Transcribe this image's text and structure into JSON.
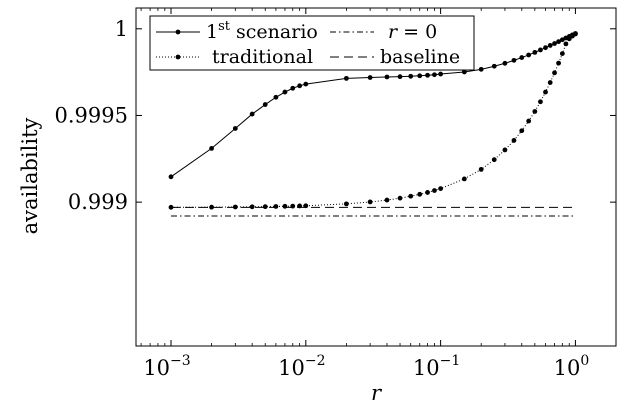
{
  "chart_data": {
    "type": "line",
    "xlabel": "r",
    "ylabel": "availability",
    "xscale": "log",
    "xlim": [
      0.00055,
      2.0
    ],
    "ylim": [
      0.99817,
      1.00012
    ],
    "x_ticks": [
      {
        "value": 0.001,
        "label": "10",
        "exp": "−3"
      },
      {
        "value": 0.01,
        "label": "10",
        "exp": "−2"
      },
      {
        "value": 0.1,
        "label": "10",
        "exp": "−1"
      },
      {
        "value": 1.0,
        "label": "10",
        "exp": "0"
      }
    ],
    "y_ticks": [
      {
        "value": 0.999,
        "label": "0.999"
      },
      {
        "value": 0.9995,
        "label": "0.9995"
      },
      {
        "value": 1.0,
        "label": "1"
      }
    ],
    "legend_position": "top-left",
    "series": [
      {
        "name": "1st scenario",
        "name_main": "1",
        "name_sup": "st",
        "name_rest": " scenario",
        "style": "solid-dots",
        "x": [
          0.001,
          0.002,
          0.003,
          0.004,
          0.005,
          0.006,
          0.007,
          0.008,
          0.009,
          0.01,
          0.02,
          0.03,
          0.04,
          0.05,
          0.06,
          0.07,
          0.08,
          0.09,
          0.1,
          0.15,
          0.2,
          0.25,
          0.3,
          0.35,
          0.4,
          0.45,
          0.5,
          0.55,
          0.6,
          0.65,
          0.7,
          0.75,
          0.8,
          0.85,
          0.9,
          0.95,
          1.0
        ],
        "y": [
          0.999146,
          0.99931,
          0.999425,
          0.999508,
          0.999563,
          0.999605,
          0.999635,
          0.999657,
          0.999671,
          0.999681,
          0.999714,
          0.999719,
          0.999722,
          0.999724,
          0.999726,
          0.999729,
          0.999732,
          0.999735,
          0.999739,
          0.999751,
          0.999766,
          0.999784,
          0.999801,
          0.999818,
          0.999834,
          0.999849,
          0.999864,
          0.999878,
          0.999891,
          0.999904,
          0.999915,
          0.999926,
          0.999937,
          0.999947,
          0.999956,
          0.999965,
          0.999973
        ]
      },
      {
        "name": "traditional",
        "style": "dotted-dots",
        "x": [
          0.001,
          0.002,
          0.003,
          0.004,
          0.005,
          0.006,
          0.007,
          0.008,
          0.009,
          0.01,
          0.02,
          0.03,
          0.04,
          0.05,
          0.06,
          0.07,
          0.08,
          0.09,
          0.1,
          0.15,
          0.2,
          0.25,
          0.3,
          0.35,
          0.4,
          0.45,
          0.5,
          0.55,
          0.6,
          0.65,
          0.7,
          0.75,
          0.8,
          0.85,
          0.9,
          0.95,
          1.0
        ],
        "y": [
          0.99897,
          0.998971,
          0.998972,
          0.998973,
          0.998974,
          0.998975,
          0.998976,
          0.998977,
          0.998978,
          0.998979,
          0.99899,
          0.999001,
          0.999012,
          0.999023,
          0.999034,
          0.999045,
          0.999056,
          0.999067,
          0.999078,
          0.999134,
          0.999189,
          0.999245,
          0.999301,
          0.999356,
          0.999412,
          0.999468,
          0.999523,
          0.999579,
          0.999635,
          0.99969,
          0.999746,
          0.999802,
          0.999857,
          0.999913,
          0.999942,
          0.999958,
          0.99997
        ]
      },
      {
        "name": "r = 0",
        "name_main": "r",
        "name_rest": " = 0",
        "style": "dashdot",
        "x": [
          0.001,
          1.0
        ],
        "y": [
          0.99892,
          0.99892
        ]
      },
      {
        "name": "baseline",
        "style": "dashed",
        "x": [
          0.001,
          1.0
        ],
        "y": [
          0.99897,
          0.99897
        ]
      }
    ]
  }
}
